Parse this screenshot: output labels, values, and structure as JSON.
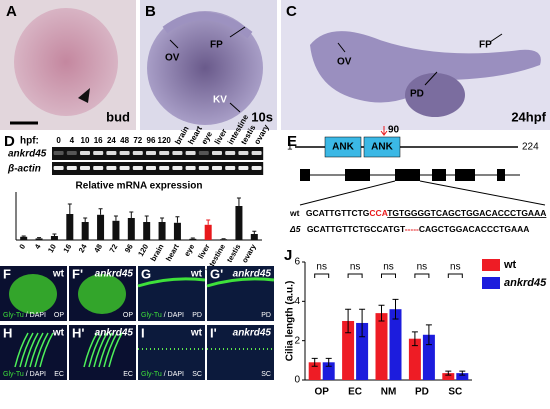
{
  "panels": {
    "A": {
      "letter": "A",
      "stage": "bud"
    },
    "B": {
      "letter": "B",
      "labels": [
        "OV",
        "FP",
        "KV"
      ],
      "stage": "10s"
    },
    "C": {
      "letter": "C",
      "labels": [
        "OV",
        "PD",
        "FP"
      ],
      "stage": "24hpf"
    },
    "D": {
      "letter": "D",
      "hpf_label": "hpf:",
      "lanes": [
        "0",
        "4",
        "10",
        "16",
        "24",
        "48",
        "72",
        "96",
        "120",
        "brain",
        "heart",
        "eye",
        "liver",
        "intestine",
        "testis",
        "ovary"
      ],
      "rows": [
        "ankrd45",
        "β-actin"
      ]
    },
    "E": {
      "letter": "E",
      "start": "1",
      "end": "224",
      "domains": [
        "ANK",
        "ANK"
      ],
      "site": "90",
      "wt_name": "wt",
      "wt_seq": [
        "GCATTGTTCTG",
        "CCA",
        "TGTGGGGTCAGCTGGACACCCTGAAA"
      ],
      "mut_name": "Δ5",
      "mut_seq": [
        "GCATTGTTCTGCCATGT",
        "-----",
        "CAGCTGGACACCCTGAAA"
      ]
    },
    "images": [
      {
        "letter": "F",
        "genotype": "wt",
        "stain": [
          "Gly-Tu",
          "/ DAPI"
        ],
        "region": "OP"
      },
      {
        "letter": "F'",
        "genotype": "ankrd45",
        "region": "OP"
      },
      {
        "letter": "G",
        "genotype": "wt",
        "stain": [
          "Gly-Tu",
          "/ DAPI"
        ],
        "region": "PD"
      },
      {
        "letter": "G'",
        "genotype": "ankrd45",
        "region": "PD"
      },
      {
        "letter": "H",
        "genotype": "wt",
        "stain": [
          "Gly-Tu",
          "/ DAPI"
        ],
        "region": "EC"
      },
      {
        "letter": "H'",
        "genotype": "ankrd45",
        "region": "EC"
      },
      {
        "letter": "I",
        "genotype": "wt",
        "stain": [
          "Gly-Tu",
          "/ DAPI"
        ],
        "region": "SC"
      },
      {
        "letter": "I'",
        "genotype": "ankrd45",
        "region": "SC"
      }
    ],
    "J": {
      "letter": "J"
    }
  },
  "chart_data": [
    {
      "type": "bar",
      "title": "Relative mRNA expression",
      "categories": [
        "0",
        "4",
        "10",
        "16",
        "24",
        "48",
        "72",
        "96",
        "120",
        "brain",
        "heart",
        "eye",
        "liver",
        "intestine",
        "testis",
        "ovary"
      ],
      "values": [
        0.8,
        0.4,
        1,
        6.5,
        4.5,
        6.3,
        4.8,
        5.5,
        4.5,
        4.5,
        4.3,
        0.3,
        3.8,
        0.2,
        8.5,
        1.5
      ],
      "errors": [
        0.2,
        0.2,
        0.5,
        2.5,
        1,
        1.5,
        1.2,
        1.5,
        1.5,
        1,
        1.5,
        0.2,
        1.2,
        0.1,
        2,
        0.7
      ],
      "color": "#111111",
      "highlight_color": "#e8191c",
      "highlight": [
        12
      ],
      "ylim": [
        0,
        12
      ]
    },
    {
      "type": "groupedbar",
      "ylabel": "Cilia length (a.u.)",
      "categories": [
        "OP",
        "EC",
        "NM",
        "PD",
        "SC"
      ],
      "series": [
        {
          "name": "wt",
          "color": "#ee1c25",
          "values": [
            0.9,
            3.0,
            3.4,
            2.1,
            0.35
          ],
          "errors": [
            0.2,
            0.6,
            0.4,
            0.35,
            0.1
          ]
        },
        {
          "name": "ankrd45",
          "color": "#1c1cdd",
          "values": [
            0.9,
            2.9,
            3.6,
            2.3,
            0.35
          ],
          "errors": [
            0.2,
            0.7,
            0.5,
            0.5,
            0.1
          ]
        }
      ],
      "annotations": [
        "ns",
        "ns",
        "ns",
        "ns",
        "ns"
      ],
      "ylim": [
        0,
        6
      ],
      "yticks": [
        0,
        2,
        4,
        6
      ],
      "legend": "upper-right"
    }
  ]
}
